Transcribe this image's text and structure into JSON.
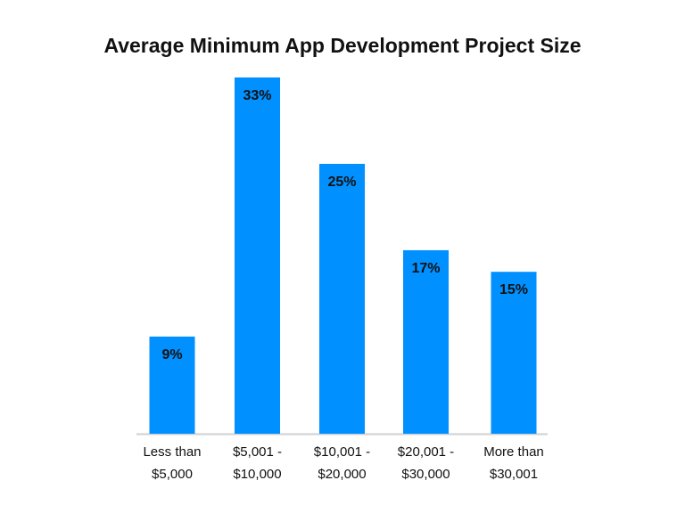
{
  "chart_data": {
    "type": "bar",
    "title": "Average Minimum App Development Project Size",
    "categories": [
      [
        "Less than",
        "$5,000"
      ],
      [
        "$5,001 -",
        "$10,000"
      ],
      [
        "$10,001 -",
        "$20,000"
      ],
      [
        "$20,001 -",
        "$30,000"
      ],
      [
        "More than",
        "$30,001"
      ]
    ],
    "values": [
      9,
      33,
      25,
      17,
      15
    ],
    "data_labels": [
      "9%",
      "33%",
      "25%",
      "17%",
      "15%"
    ],
    "xlabel": "",
    "ylabel": "",
    "ylim": [
      0,
      33
    ],
    "grid": false,
    "bar_color": "#0090FF"
  }
}
